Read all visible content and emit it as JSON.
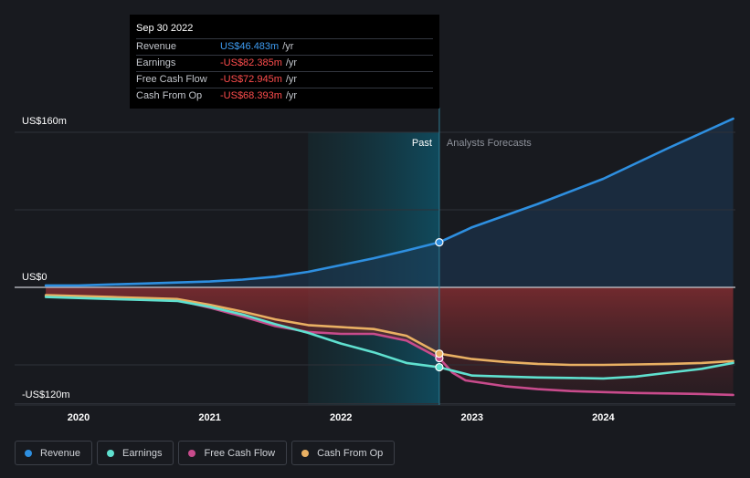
{
  "tooltip": {
    "date": "Sep 30 2022",
    "rows": [
      {
        "label": "Revenue",
        "value": "US$46.483m",
        "unit": "/yr"
      },
      {
        "label": "Earnings",
        "value": "-US$82.385m",
        "unit": "/yr"
      },
      {
        "label": "Free Cash Flow",
        "value": "-US$72.945m",
        "unit": "/yr"
      },
      {
        "label": "Cash From Op",
        "value": "-US$68.393m",
        "unit": "/yr"
      }
    ]
  },
  "labels": {
    "past": "Past",
    "forecast": "Analysts Forecasts"
  },
  "colors": {
    "revenue": "#2e8fe0",
    "earnings": "#5fe0cf",
    "free_cash_flow": "#c84b8c",
    "cash_from_op": "#e9b063",
    "background": "#181a1f"
  },
  "legend": [
    {
      "label": "Revenue",
      "color": "#2e8fe0"
    },
    {
      "label": "Earnings",
      "color": "#5fe0cf"
    },
    {
      "label": "Free Cash Flow",
      "color": "#c84b8c"
    },
    {
      "label": "Cash From Op",
      "color": "#e9b063"
    }
  ],
  "chart_data": {
    "type": "line",
    "x_ticks": [
      "2020",
      "2021",
      "2022",
      "2023",
      "2024"
    ],
    "y_ticks": [
      {
        "value": 160,
        "label": "US$160m"
      },
      {
        "value": 0,
        "label": "US$0"
      },
      {
        "value": -120,
        "label": "-US$120m"
      }
    ],
    "ylim": [
      -120,
      160
    ],
    "xlim": [
      2019.75,
      2024.99
    ],
    "past_range": [
      2021.75,
      2022.75
    ],
    "divider_x": 2022.75,
    "marker_x": 2022.75,
    "series": [
      {
        "name": "Revenue",
        "color": "#2e8fe0",
        "points": [
          [
            2019.75,
            2
          ],
          [
            2020.0,
            2
          ],
          [
            2020.25,
            3
          ],
          [
            2020.5,
            4
          ],
          [
            2020.75,
            5
          ],
          [
            2021.0,
            6
          ],
          [
            2021.25,
            8
          ],
          [
            2021.5,
            11
          ],
          [
            2021.75,
            16
          ],
          [
            2022.0,
            23
          ],
          [
            2022.25,
            30
          ],
          [
            2022.5,
            38
          ],
          [
            2022.75,
            46.5
          ],
          [
            2023.0,
            62
          ],
          [
            2023.5,
            86
          ],
          [
            2024.0,
            112
          ],
          [
            2024.5,
            144
          ],
          [
            2024.99,
            174
          ]
        ]
      },
      {
        "name": "Earnings",
        "color": "#5fe0cf",
        "points": [
          [
            2019.75,
            -10
          ],
          [
            2020.0,
            -11
          ],
          [
            2020.25,
            -12
          ],
          [
            2020.5,
            -13
          ],
          [
            2020.75,
            -14
          ],
          [
            2021.0,
            -20
          ],
          [
            2021.25,
            -28
          ],
          [
            2021.5,
            -38
          ],
          [
            2021.75,
            -47
          ],
          [
            2022.0,
            -58
          ],
          [
            2022.25,
            -67
          ],
          [
            2022.5,
            -78
          ],
          [
            2022.75,
            -82.4
          ],
          [
            2023.0,
            -91
          ],
          [
            2023.25,
            -92
          ],
          [
            2023.5,
            -93
          ],
          [
            2023.75,
            -93.5
          ],
          [
            2024.0,
            -94
          ],
          [
            2024.25,
            -92
          ],
          [
            2024.5,
            -88
          ],
          [
            2024.75,
            -84
          ],
          [
            2024.99,
            -78
          ]
        ]
      },
      {
        "name": "Free Cash Flow",
        "color": "#c84b8c",
        "points": [
          [
            2019.75,
            -9
          ],
          [
            2020.0,
            -10
          ],
          [
            2020.25,
            -11
          ],
          [
            2020.5,
            -12
          ],
          [
            2020.75,
            -13
          ],
          [
            2021.0,
            -21
          ],
          [
            2021.25,
            -30
          ],
          [
            2021.5,
            -40
          ],
          [
            2021.75,
            -46
          ],
          [
            2022.0,
            -48
          ],
          [
            2022.25,
            -48
          ],
          [
            2022.5,
            -55
          ],
          [
            2022.75,
            -73
          ],
          [
            2022.85,
            -88
          ],
          [
            2022.95,
            -96
          ],
          [
            2023.25,
            -102
          ],
          [
            2023.5,
            -105
          ],
          [
            2023.75,
            -107
          ],
          [
            2024.0,
            -108
          ],
          [
            2024.25,
            -109
          ],
          [
            2024.5,
            -109.5
          ],
          [
            2024.75,
            -110
          ],
          [
            2024.99,
            -111
          ]
        ]
      },
      {
        "name": "Cash From Op",
        "color": "#e9b063",
        "points": [
          [
            2019.75,
            -8
          ],
          [
            2020.0,
            -9
          ],
          [
            2020.25,
            -10
          ],
          [
            2020.5,
            -11
          ],
          [
            2020.75,
            -12
          ],
          [
            2021.0,
            -18
          ],
          [
            2021.25,
            -25
          ],
          [
            2021.5,
            -33
          ],
          [
            2021.75,
            -39
          ],
          [
            2022.0,
            -41
          ],
          [
            2022.25,
            -43
          ],
          [
            2022.5,
            -50
          ],
          [
            2022.75,
            -68.4
          ],
          [
            2023.0,
            -74
          ],
          [
            2023.25,
            -77
          ],
          [
            2023.5,
            -79
          ],
          [
            2023.75,
            -80
          ],
          [
            2024.0,
            -80
          ],
          [
            2024.25,
            -79.5
          ],
          [
            2024.5,
            -79
          ],
          [
            2024.75,
            -78
          ],
          [
            2024.99,
            -76
          ]
        ]
      }
    ]
  }
}
